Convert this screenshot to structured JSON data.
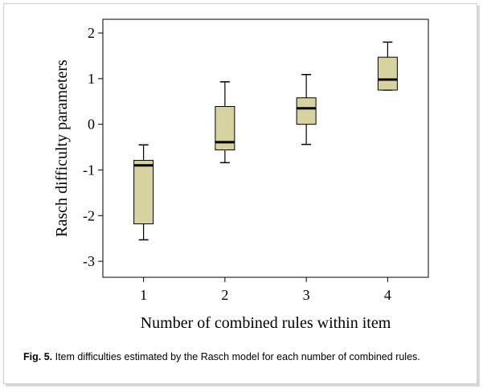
{
  "chart_data": {
    "type": "boxplot",
    "title": "",
    "xlabel": "Number of combined rules within item",
    "ylabel": "Rasch difficulty parameters",
    "categories": [
      "1",
      "2",
      "3",
      "4"
    ],
    "ylim": [
      -3.35,
      2.3
    ],
    "yticks": [
      "2",
      "1",
      "0",
      "-1",
      "-2",
      "-3"
    ],
    "ytick_values": [
      2,
      1,
      0,
      -1,
      -2,
      -3
    ],
    "boxes": [
      {
        "category": "1",
        "whisker_low": -2.53,
        "q1": -2.18,
        "median": -0.9,
        "q3": -0.79,
        "whisker_high": -0.45
      },
      {
        "category": "2",
        "whisker_low": -0.84,
        "q1": -0.56,
        "median": -0.39,
        "q3": 0.39,
        "whisker_high": 0.93
      },
      {
        "category": "3",
        "whisker_low": -0.44,
        "q1": 0.0,
        "median": 0.35,
        "q3": 0.58,
        "whisker_high": 1.09
      },
      {
        "category": "4",
        "whisker_low": 0.75,
        "q1": 0.75,
        "median": 0.98,
        "q3": 1.47,
        "whisker_high": 1.8
      }
    ],
    "box_fill": "#d6d3a0",
    "grid": false,
    "legend": "none"
  },
  "caption": {
    "label": "Fig. 5.",
    "text": " Item difficulties estimated by the Rasch model for each number of combined rules."
  }
}
